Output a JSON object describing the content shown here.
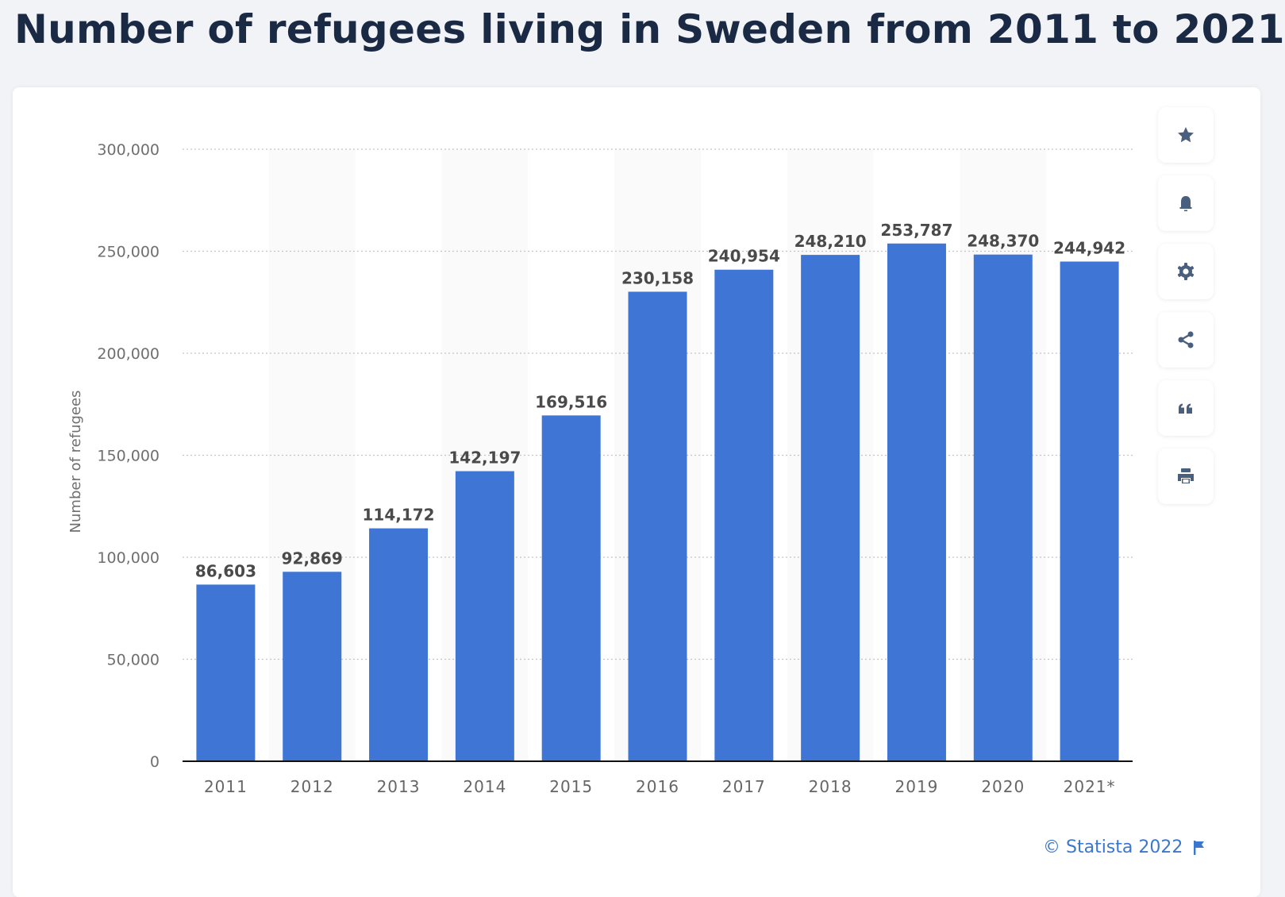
{
  "title": "Number of refugees living in Sweden from 2011 to 2021",
  "chart_data": {
    "type": "bar",
    "categories": [
      "2011",
      "2012",
      "2013",
      "2014",
      "2015",
      "2016",
      "2017",
      "2018",
      "2019",
      "2020",
      "2021*"
    ],
    "values": [
      86603,
      92869,
      114172,
      142197,
      169516,
      230158,
      240954,
      248210,
      253787,
      248370,
      244942
    ],
    "value_labels": [
      "86,603",
      "92,869",
      "114,172",
      "142,197",
      "169,516",
      "230,158",
      "240,954",
      "248,210",
      "253,787",
      "248,370",
      "244,942"
    ],
    "ylabel": "Number of refugees",
    "xlabel": "",
    "ylim": [
      0,
      300000
    ],
    "yticks": [
      0,
      50000,
      100000,
      150000,
      200000,
      250000,
      300000
    ],
    "ytick_labels": [
      "0",
      "50,000",
      "100,000",
      "150,000",
      "200,000",
      "250,000",
      "300,000"
    ],
    "grid": "horizontal dotted",
    "bar_color": "#3f76d6"
  },
  "toolbar": {
    "icons": [
      "star-icon",
      "bell-icon",
      "gear-icon",
      "share-icon",
      "quote-icon",
      "print-icon"
    ],
    "icon_color": "#4a5f7e"
  },
  "credit": {
    "text": "© Statista 2022",
    "icon": "flag-icon",
    "color": "#3b77d0"
  }
}
